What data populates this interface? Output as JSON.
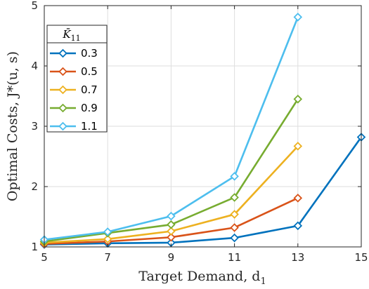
{
  "chart_data": {
    "type": "line",
    "xlabel": "Target Demand, d",
    "xlabel_sub": "1",
    "ylabel": "Optimal Costs, J*(u, s)",
    "xlim": [
      5,
      15
    ],
    "ylim": [
      1,
      5
    ],
    "x_ticks": [
      "5",
      "7",
      "9",
      "11",
      "13",
      "15"
    ],
    "y_ticks": [
      "1",
      "2",
      "3",
      "4",
      "5"
    ],
    "grid": true,
    "legend": {
      "title": "K̄",
      "title_sub": "11",
      "placement": "top-left"
    },
    "marker": "diamond",
    "series": [
      {
        "name": "0.3",
        "color": "#0072BD",
        "x": [
          5,
          7,
          9,
          11,
          13,
          15
        ],
        "y": [
          1.04,
          1.06,
          1.07,
          1.15,
          1.35,
          2.82
        ]
      },
      {
        "name": "0.5",
        "color": "#D95319",
        "x": [
          5,
          7,
          9,
          11,
          13
        ],
        "y": [
          1.05,
          1.09,
          1.16,
          1.32,
          1.81
        ]
      },
      {
        "name": "0.7",
        "color": "#EDB120",
        "x": [
          5,
          7,
          9,
          11,
          13
        ],
        "y": [
          1.07,
          1.13,
          1.26,
          1.54,
          2.67
        ]
      },
      {
        "name": "0.9",
        "color": "#77AC30",
        "x": [
          5,
          7,
          9,
          11,
          13
        ],
        "y": [
          1.09,
          1.23,
          1.37,
          1.82,
          3.45
        ]
      },
      {
        "name": "1.1",
        "color": "#4DBEEE",
        "x": [
          5,
          7,
          9,
          11,
          13
        ],
        "y": [
          1.12,
          1.25,
          1.51,
          2.17,
          4.81
        ]
      }
    ]
  }
}
